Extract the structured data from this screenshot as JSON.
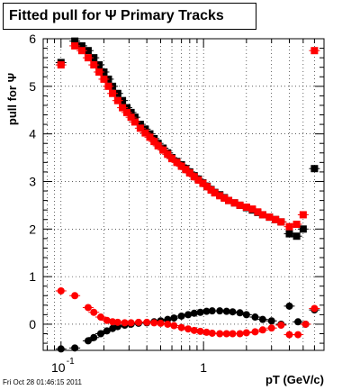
{
  "title": "Fitted pull for  Ψ   Primary Tracks",
  "footer_date": "Fri Oct 28 01:46:15 2011",
  "chart_data": {
    "type": "scatter",
    "title": "Fitted pull for  Ψ   Primary Tracks",
    "xlabel": "pT (GeV/c)",
    "ylabel": "pull for Ψ",
    "xscale": "log",
    "xlim": [
      0.075,
      7.0
    ],
    "ylim": [
      -0.55,
      6.0
    ],
    "grid": true,
    "x_tick_labels": [
      {
        "value": 0.1,
        "base": "10",
        "exp": "-1"
      },
      {
        "value": 1,
        "base": "1",
        "exp": ""
      }
    ],
    "y_tick_labels": [
      "0",
      "1",
      "2",
      "3",
      "4",
      "5",
      "6"
    ],
    "y_ticks": [
      0,
      1,
      2,
      3,
      4,
      5,
      6
    ],
    "series": [
      {
        "marker": "square",
        "color": "#000000",
        "x": [
          0.1,
          0.125,
          0.14,
          0.155,
          0.17,
          0.185,
          0.2,
          0.215,
          0.23,
          0.25,
          0.27,
          0.29,
          0.31,
          0.33,
          0.36,
          0.39,
          0.42,
          0.45,
          0.48,
          0.52,
          0.56,
          0.6,
          0.65,
          0.7,
          0.75,
          0.8,
          0.86,
          0.92,
          0.99,
          1.06,
          1.13,
          1.2,
          1.3,
          1.4,
          1.5,
          1.65,
          1.8,
          2.0,
          2.2,
          2.4,
          2.6,
          2.9,
          3.2,
          3.5,
          4.0,
          4.5,
          5.0,
          6.0
        ],
        "y": [
          5.5,
          5.95,
          5.85,
          5.75,
          5.6,
          5.45,
          5.3,
          5.15,
          5.0,
          4.85,
          4.7,
          4.55,
          4.45,
          4.35,
          4.2,
          4.1,
          4.0,
          3.9,
          3.8,
          3.7,
          3.6,
          3.5,
          3.42,
          3.35,
          3.27,
          3.2,
          3.12,
          3.05,
          2.97,
          2.9,
          2.83,
          2.77,
          2.72,
          2.66,
          2.6,
          2.55,
          2.5,
          2.45,
          2.4,
          2.35,
          2.3,
          2.25,
          2.2,
          2.15,
          1.9,
          1.85,
          2.0,
          3.27
        ]
      },
      {
        "marker": "square",
        "color": "#ff0000",
        "x": [
          0.1,
          0.125,
          0.14,
          0.155,
          0.17,
          0.185,
          0.2,
          0.215,
          0.23,
          0.25,
          0.27,
          0.29,
          0.31,
          0.33,
          0.36,
          0.39,
          0.42,
          0.45,
          0.48,
          0.52,
          0.56,
          0.6,
          0.65,
          0.7,
          0.75,
          0.8,
          0.86,
          0.92,
          0.99,
          1.06,
          1.13,
          1.2,
          1.3,
          1.4,
          1.5,
          1.65,
          1.8,
          2.0,
          2.2,
          2.4,
          2.6,
          2.9,
          3.2,
          3.5,
          4.0,
          4.5,
          5.0,
          6.0
        ],
        "y": [
          5.45,
          5.85,
          5.75,
          5.6,
          5.45,
          5.3,
          5.15,
          5.0,
          4.85,
          4.7,
          4.55,
          4.45,
          4.35,
          4.25,
          4.12,
          4.02,
          3.93,
          3.84,
          3.75,
          3.66,
          3.57,
          3.48,
          3.4,
          3.32,
          3.25,
          3.18,
          3.1,
          3.03,
          2.96,
          2.89,
          2.82,
          2.76,
          2.7,
          2.65,
          2.6,
          2.55,
          2.5,
          2.46,
          2.42,
          2.36,
          2.3,
          2.25,
          2.2,
          2.15,
          2.05,
          2.1,
          2.3,
          5.75
        ]
      },
      {
        "marker": "circle",
        "color": "#000000",
        "x": [
          0.1,
          0.125,
          0.155,
          0.17,
          0.19,
          0.21,
          0.23,
          0.25,
          0.28,
          0.31,
          0.35,
          0.4,
          0.45,
          0.5,
          0.56,
          0.62,
          0.7,
          0.78,
          0.86,
          0.95,
          1.05,
          1.15,
          1.3,
          1.45,
          1.6,
          1.8,
          2.0,
          2.3,
          2.6,
          3.0,
          3.5,
          4.0,
          4.6,
          5.2,
          6.0
        ],
        "y": [
          -0.52,
          -0.5,
          -0.35,
          -0.28,
          -0.2,
          -0.14,
          -0.09,
          -0.05,
          -0.02,
          0.0,
          0.02,
          0.03,
          0.05,
          0.07,
          0.1,
          0.13,
          0.17,
          0.2,
          0.23,
          0.25,
          0.27,
          0.28,
          0.28,
          0.27,
          0.26,
          0.24,
          0.2,
          0.15,
          0.1,
          0.07,
          0.0,
          0.38,
          0.05,
          0.0,
          0.3
        ]
      },
      {
        "marker": "circle",
        "color": "#ff0000",
        "x": [
          0.1,
          0.125,
          0.155,
          0.17,
          0.19,
          0.21,
          0.23,
          0.25,
          0.28,
          0.31,
          0.35,
          0.4,
          0.45,
          0.5,
          0.56,
          0.62,
          0.7,
          0.78,
          0.86,
          0.95,
          1.05,
          1.15,
          1.3,
          1.45,
          1.6,
          1.8,
          2.0,
          2.3,
          2.6,
          3.0,
          3.5,
          4.0,
          4.6,
          5.2,
          6.0
        ],
        "y": [
          0.7,
          0.6,
          0.35,
          0.25,
          0.15,
          0.08,
          0.05,
          0.04,
          0.03,
          0.03,
          0.04,
          0.04,
          0.03,
          0.02,
          0.0,
          -0.03,
          -0.07,
          -0.1,
          -0.13,
          -0.15,
          -0.17,
          -0.19,
          -0.2,
          -0.2,
          -0.2,
          -0.2,
          -0.18,
          -0.16,
          -0.12,
          -0.08,
          -0.02,
          -0.22,
          -0.22,
          0.0,
          0.33
        ]
      }
    ]
  }
}
